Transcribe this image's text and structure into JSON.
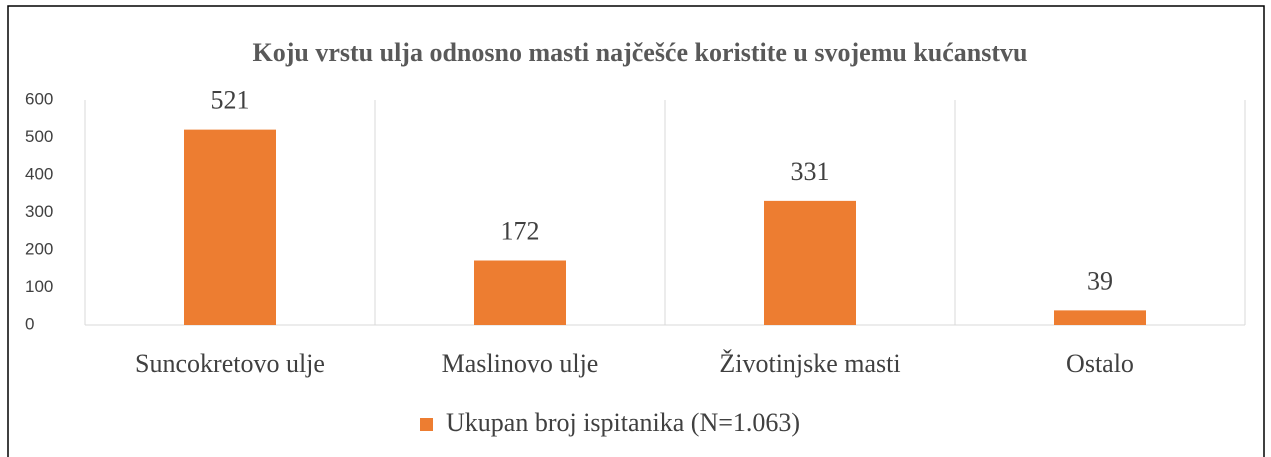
{
  "chart_data": {
    "type": "bar",
    "title": "Koju vrstu ulja odnosno masti najčešće koristite u svojemu kućanstvu",
    "categories": [
      "Suncokretovo ulje",
      "Maslinovo ulje",
      "Životinjske masti",
      "Ostalo"
    ],
    "series": [
      {
        "name": "Ukupan broj ispitanika (N=1.063)",
        "color": "#ed7d31",
        "values": [
          521,
          172,
          331,
          39
        ]
      }
    ],
    "ylim": [
      0,
      600
    ],
    "yticks": [
      0,
      100,
      200,
      300,
      400,
      500,
      600
    ],
    "grid": false,
    "legend": "bottom"
  }
}
